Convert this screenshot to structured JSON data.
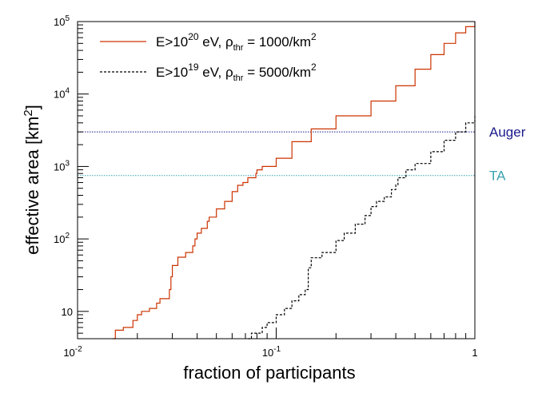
{
  "chart_data": {
    "type": "line",
    "xlabel": "fraction of participants",
    "ylabel": "effective area [km²]",
    "xscale": "log",
    "yscale": "log",
    "xlim": [
      0.01,
      1
    ],
    "ylim": [
      4.2,
      100000
    ],
    "x_ticks": [
      {
        "value": 0.01,
        "base": "10",
        "exp": "-2"
      },
      {
        "value": 0.1,
        "base": "10",
        "exp": "-1"
      },
      {
        "value": 1,
        "base": "1",
        "exp": ""
      }
    ],
    "y_ticks": [
      {
        "value": 10,
        "base": "10",
        "exp": ""
      },
      {
        "value": 100,
        "base": "10",
        "exp": "2"
      },
      {
        "value": 1000,
        "base": "10",
        "exp": "3"
      },
      {
        "value": 10000,
        "base": "10",
        "exp": "4"
      },
      {
        "value": 100000,
        "base": "10",
        "exp": "5"
      }
    ],
    "series": [
      {
        "name": "E>10²⁰ eV, ρthr = 1000/km²",
        "style": "solid",
        "color": "#cc3300",
        "x": [
          0.015,
          0.0155,
          0.017,
          0.019,
          0.02,
          0.021,
          0.023,
          0.025,
          0.026,
          0.029,
          0.0295,
          0.03,
          0.032,
          0.035,
          0.038,
          0.039,
          0.04,
          0.042,
          0.045,
          0.046,
          0.05,
          0.055,
          0.06,
          0.064,
          0.068,
          0.072,
          0.078,
          0.079,
          0.08,
          0.085,
          0.1,
          0.12,
          0.15,
          0.2,
          0.3,
          0.4,
          0.5,
          0.6,
          0.7,
          0.8,
          0.9,
          1.0
        ],
        "y": [
          4.2,
          5.5,
          6,
          7.5,
          9,
          10,
          11,
          13,
          15,
          20,
          30,
          43,
          56,
          65,
          80,
          100,
          120,
          140,
          175,
          200,
          260,
          330,
          450,
          550,
          600,
          700,
          700,
          800,
          900,
          1000,
          1300,
          2200,
          3300,
          5000,
          8000,
          13000,
          22000,
          35000,
          50000,
          70000,
          85000,
          100000
        ]
      },
      {
        "name": "E>10¹⁹ eV, ρthr = 5000/km²",
        "style": "dashed",
        "color": "#000000",
        "x": [
          0.072,
          0.075,
          0.085,
          0.09,
          0.1,
          0.11,
          0.12,
          0.13,
          0.14,
          0.145,
          0.15,
          0.17,
          0.2,
          0.22,
          0.25,
          0.28,
          0.3,
          0.32,
          0.35,
          0.38,
          0.4,
          0.41,
          0.45,
          0.5,
          0.6,
          0.7,
          0.8,
          0.9,
          1.0
        ],
        "y": [
          4.2,
          5,
          6,
          7,
          9,
          11,
          14,
          17,
          20,
          40,
          55,
          65,
          95,
          120,
          160,
          210,
          280,
          330,
          380,
          480,
          560,
          700,
          900,
          1100,
          1600,
          2300,
          3000,
          4000,
          5200
        ]
      }
    ],
    "reference_lines": [
      {
        "name": "Auger",
        "y": 3000,
        "color": "#1a1a8c"
      },
      {
        "name": "TA",
        "y": 750,
        "color": "#3aa3b0"
      }
    ],
    "legend": {
      "placement": "top-left",
      "entries": [
        {
          "pre": "E>10",
          "sup": "20",
          "mid": " eV, ρ",
          "sub": "thr",
          "post": " = 1000/km",
          "post_sup": "2",
          "style": "solid",
          "color": "#cc3300"
        },
        {
          "pre": "E>10",
          "sup": "19",
          "mid": " eV, ρ",
          "sub": "thr",
          "post": " = 5000/km",
          "post_sup": "2",
          "style": "dashed",
          "color": "#000000"
        }
      ]
    },
    "grid": false
  }
}
